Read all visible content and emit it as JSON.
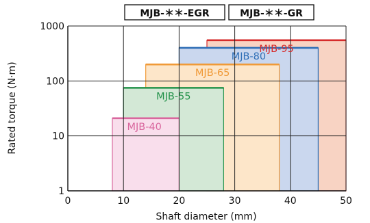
{
  "chart_data": {
    "type": "bar",
    "header_labels": [
      "MJB-＊＊-EGR",
      "MJB-＊＊-GR"
    ],
    "xlabel": "Shaft diameter (mm)",
    "ylabel": "Rated torque (N·m)",
    "xlim": [
      0,
      50
    ],
    "ylim": [
      1,
      1000
    ],
    "y_scale": "log",
    "x_ticks": [
      "0",
      "10",
      "20",
      "30",
      "40",
      "50"
    ],
    "y_ticks": [
      "1",
      "10",
      "100",
      "1000"
    ],
    "grid": true,
    "series": [
      {
        "name": "MJB-95",
        "shaft_min": 25,
        "shaft_max": 50,
        "torque": 550,
        "color": "#d62b2b",
        "fill": "#f8d3c3"
      },
      {
        "name": "MJB-80",
        "shaft_min": 20,
        "shaft_max": 45,
        "torque": 400,
        "color": "#2f6fb6",
        "fill": "#cad7ee"
      },
      {
        "name": "MJB-65",
        "shaft_min": 14,
        "shaft_max": 38,
        "torque": 200,
        "color": "#f09a38",
        "fill": "#fde6c9"
      },
      {
        "name": "MJB-55",
        "shaft_min": 10,
        "shaft_max": 28,
        "torque": 75,
        "color": "#23924a",
        "fill": "#d3e8d6"
      },
      {
        "name": "MJB-40",
        "shaft_min": 8,
        "shaft_max": 20,
        "torque": 21,
        "color": "#d9679e",
        "fill": "#f9deec"
      }
    ]
  }
}
